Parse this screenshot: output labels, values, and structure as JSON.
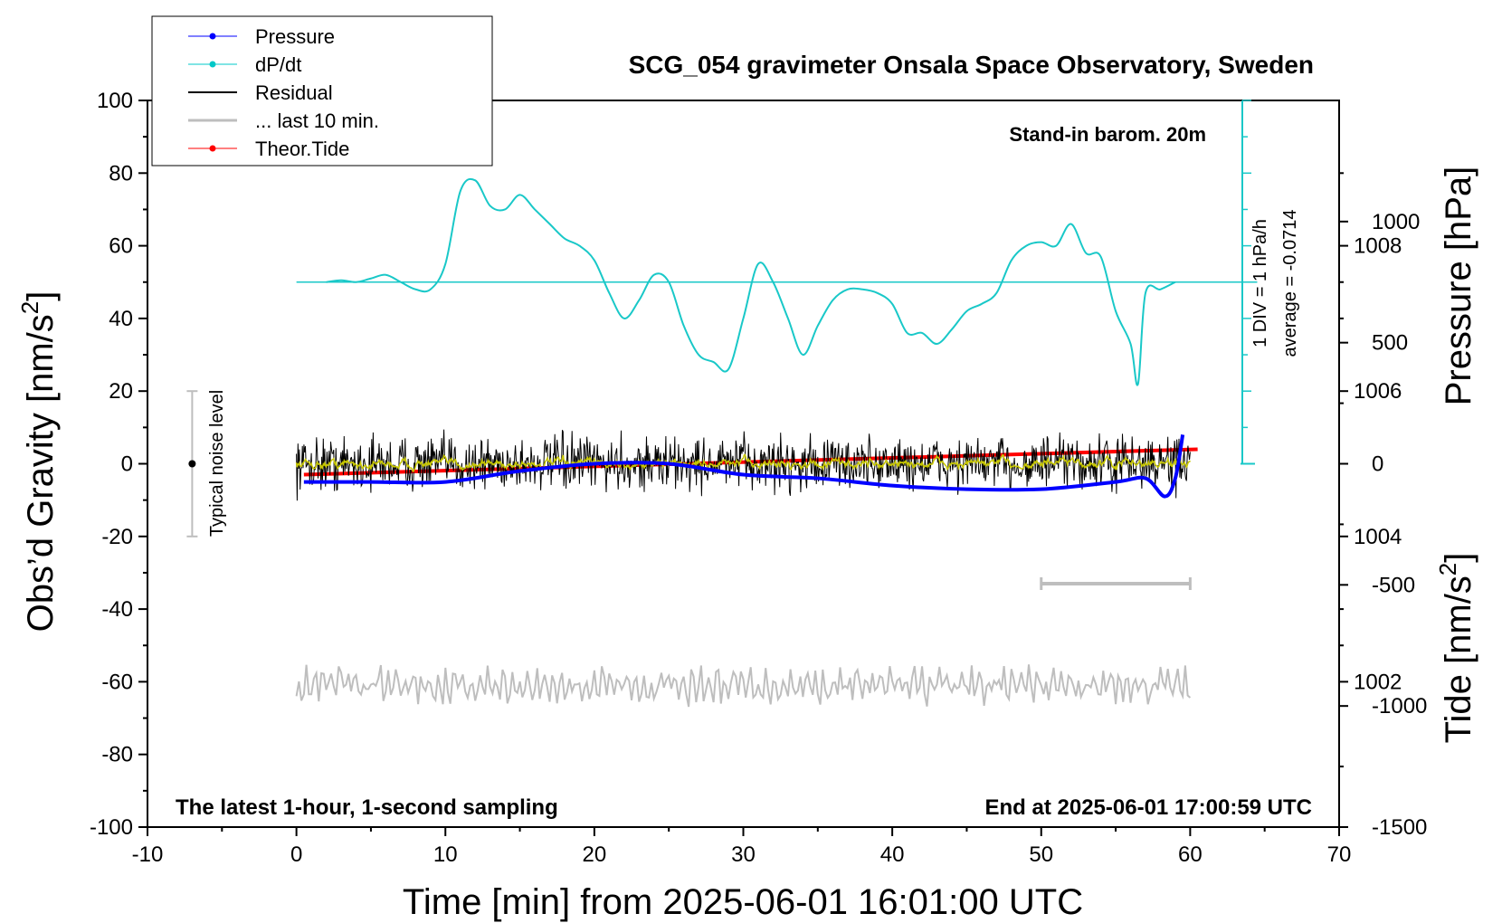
{
  "chart_data": {
    "type": "line",
    "title": "SCG_054 gravimeter Onsala Space Observatory, Sweden",
    "xlabel": "Time [min] from 2025-06-01 16:01:00 UTC",
    "ylabel_left_prefix": "Obs’d Gravity [nm/s",
    "ylabel_left_suffix": "]",
    "ylabel_pressure": "Pressure [hPa]",
    "ylabel_tide_prefix": "Tide [nm/s",
    "ylabel_tide_suffix": "]",
    "superscript": "2",
    "xlim": [
      -10,
      70
    ],
    "ylim": [
      -100,
      100
    ],
    "pressure_lim": [
      1000,
      1010
    ],
    "tide_lim": [
      -1500,
      1500
    ],
    "x_ticks": [
      "-10",
      "0",
      "10",
      "20",
      "30",
      "40",
      "50",
      "60",
      "70"
    ],
    "y_ticks": [
      "100",
      "80",
      "60",
      "40",
      "20",
      "0",
      "-20",
      "-40",
      "-60",
      "-80",
      "-100"
    ],
    "pressure_ticks": [
      "1008",
      "1006",
      "1004",
      "1002"
    ],
    "tide_ticks": [
      "1000",
      "500",
      "0",
      "-500",
      "-1000",
      "-1500"
    ],
    "legend": [
      {
        "label": "Pressure",
        "color": "#0000ff",
        "marker": true
      },
      {
        "label": "dP/dt",
        "color": "#00c8c8",
        "marker": true
      },
      {
        "label": "Residual",
        "color": "#000000",
        "marker": false
      },
      {
        "label": "... last 10 min.",
        "color": "#bebebe",
        "marker": false
      },
      {
        "label": "Theor.Tide",
        "color": "#ff0000",
        "marker": true
      }
    ],
    "annotations": {
      "stand_in": "Stand-in barom. 20m",
      "div_label": "1 DIV = 1 hPa/h",
      "average_label": "average = -0.0714",
      "noise_label": "Typical noise level",
      "latest": "The latest 1-hour, 1-second sampling",
      "end_at": "End at 2025-06-01 17:00:59 UTC"
    },
    "colors": {
      "pressure": "#0000ff",
      "dpdt": "#19c8c8",
      "residual": "#000000",
      "residual_smooth": "#c8c800",
      "tide": "#ff0000",
      "last10": "#bebebe"
    },
    "noise_bar": {
      "x": -7,
      "y_low": -20,
      "y_high": 20,
      "center": 0
    },
    "last10_bar": {
      "x_start": 50,
      "x_end": 60,
      "y": -33
    },
    "series": [
      {
        "name": "Pressure",
        "unit": "hPa",
        "x": [
          0.5,
          5,
          10,
          15,
          20,
          25,
          30,
          35,
          40,
          45,
          50,
          55,
          57,
          58.3,
          59,
          59.5
        ],
        "values": [
          1004.75,
          1004.75,
          1004.75,
          1004.9,
          1005.0,
          1005.0,
          1004.85,
          1004.8,
          1004.7,
          1004.65,
          1004.65,
          1004.75,
          1004.8,
          1004.55,
          1004.8,
          1005.4
        ]
      },
      {
        "name": "dP/dt",
        "unit": "gravity-axis equivalent, baseline 50 nm/s2",
        "x": [
          2,
          3,
          4,
          5,
          6,
          7,
          8,
          9,
          10,
          11,
          12,
          13,
          14,
          15,
          16,
          17,
          18,
          19,
          20,
          21,
          22,
          23,
          24,
          25,
          26,
          27,
          28,
          29,
          30,
          31,
          32,
          33,
          34,
          35,
          36,
          37,
          38,
          39,
          40,
          41,
          42,
          43,
          44,
          45,
          46,
          47,
          48,
          49,
          50,
          51,
          52,
          53,
          54,
          55,
          56,
          56.5,
          57,
          58,
          59
        ],
        "values": [
          50,
          50.5,
          50,
          51,
          52,
          50,
          48,
          48,
          55,
          75,
          78,
          71,
          70,
          74,
          70,
          66,
          62,
          60,
          56,
          47,
          40,
          45,
          52,
          50,
          38,
          30,
          28,
          26,
          40,
          55,
          50,
          40,
          30,
          38,
          45,
          48,
          48,
          47,
          44,
          36,
          36,
          33,
          37,
          42,
          44,
          47,
          56,
          60,
          61,
          60,
          66,
          58,
          57,
          42,
          33,
          22,
          47,
          48,
          50
        ]
      },
      {
        "name": "Residual",
        "unit": "nm/s2",
        "x_range": [
          0,
          60
        ],
        "mean": 0,
        "amplitude": 6
      },
      {
        "name": "Theor.Tide",
        "unit": "nm/s2",
        "x": [
          0.5,
          60.5
        ],
        "values": [
          -45,
          60
        ]
      },
      {
        "name": "... last 10 min.",
        "unit": "nm/s2 (offset display)",
        "x_range": [
          0,
          60
        ],
        "baseline": -61,
        "amplitude": 5
      }
    ]
  }
}
